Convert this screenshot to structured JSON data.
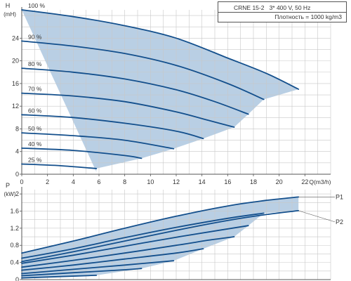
{
  "info": {
    "model": "CRNE 15-2",
    "supply": "3* 400 V, 50 Hz",
    "density": "Плотность = 1000 kg/m3"
  },
  "colors": {
    "curve": "#134f8c",
    "fill": "#b9cfe4",
    "grid": "#c8c8c8",
    "axis": "#555555",
    "text": "#333333"
  },
  "chart_data": [
    {
      "type": "line",
      "title": "CRNE 15-2 3* 400 V, 50 Hz",
      "ylabel_top": "H",
      "ylabel_unit": "(mH)",
      "xlabel": "Q(m3/h)",
      "xlim": [
        0,
        24
      ],
      "ylim": [
        0,
        29
      ],
      "x_ticks": [
        0,
        2,
        4,
        6,
        8,
        10,
        12,
        14,
        16,
        18,
        20,
        22
      ],
      "x_tick_labels": [
        "0",
        "2",
        "4",
        "6",
        "8",
        "10",
        "12",
        "14",
        "16",
        "18",
        "20",
        "22"
      ],
      "y_ticks": [
        0,
        4,
        8,
        12,
        16,
        20,
        24
      ],
      "y_tick_labels": [
        "0",
        "4",
        "8",
        "12",
        "16",
        "20",
        "24"
      ],
      "grid": true,
      "shaded_region": true,
      "series": [
        {
          "name": "100 %",
          "x": [
            0,
            4,
            8,
            12,
            16,
            19,
            21.5
          ],
          "y": [
            29,
            27.8,
            26.2,
            24,
            20.5,
            17.8,
            15.0
          ]
        },
        {
          "name": "90 %",
          "x": [
            0,
            4,
            8,
            12,
            16,
            18.8
          ],
          "y": [
            23.5,
            22.6,
            21.3,
            19.2,
            16.0,
            13.2
          ]
        },
        {
          "name": "80 %",
          "x": [
            0,
            4,
            8,
            12,
            15,
            17.6
          ],
          "y": [
            18.7,
            18.0,
            16.8,
            14.9,
            12.8,
            10.6
          ]
        },
        {
          "name": "70 %",
          "x": [
            0,
            4,
            8,
            12,
            14.5,
            16.5
          ],
          "y": [
            14.3,
            13.8,
            12.8,
            11.0,
            9.5,
            8.3
          ]
        },
        {
          "name": "60 %",
          "x": [
            0,
            4,
            8,
            12,
            14.1
          ],
          "y": [
            10.5,
            10.0,
            9.0,
            7.6,
            6.3
          ]
        },
        {
          "name": "50 %",
          "x": [
            0,
            4,
            8,
            11.8
          ],
          "y": [
            7.3,
            6.8,
            6.0,
            4.5
          ]
        },
        {
          "name": "40 %",
          "x": [
            0,
            4,
            8,
            9.3
          ],
          "y": [
            4.6,
            4.2,
            3.3,
            2.8
          ]
        },
        {
          "name": "25 %",
          "x": [
            0,
            3,
            5.8
          ],
          "y": [
            1.8,
            1.5,
            1.0
          ]
        }
      ]
    },
    {
      "type": "line",
      "ylabel_top": "P",
      "ylabel_unit": "(kW)",
      "xlim": [
        0,
        24
      ],
      "ylim": [
        0,
        2.1
      ],
      "y_ticks": [
        0,
        0.4,
        0.8,
        1.2,
        1.6,
        2
      ],
      "y_tick_labels": [
        "0",
        "0.4",
        "0.8",
        "1.2",
        "1.6",
        "2"
      ],
      "grid": true,
      "shaded_region": true,
      "series": [
        {
          "name": "P1",
          "x": [
            0,
            4,
            8,
            12,
            16,
            19,
            21.5
          ],
          "y": [
            0.62,
            0.9,
            1.2,
            1.48,
            1.72,
            1.85,
            1.93
          ]
        },
        {
          "name": "P2",
          "x": [
            0,
            4,
            8,
            12,
            16,
            19,
            21.5
          ],
          "y": [
            0.42,
            0.65,
            0.9,
            1.15,
            1.38,
            1.52,
            1.61
          ]
        },
        {
          "name": "",
          "x": [
            0,
            4,
            8,
            12,
            16,
            18.8
          ],
          "y": [
            0.5,
            0.72,
            0.98,
            1.22,
            1.43,
            1.55
          ]
        },
        {
          "name": "",
          "x": [
            0,
            4,
            8,
            12,
            15.5,
            17.6
          ],
          "y": [
            0.38,
            0.57,
            0.78,
            0.99,
            1.16,
            1.26
          ]
        },
        {
          "name": "",
          "x": [
            0,
            4,
            8,
            12,
            14.5,
            16.5
          ],
          "y": [
            0.29,
            0.45,
            0.62,
            0.8,
            0.92,
            1.0
          ]
        },
        {
          "name": "",
          "x": [
            0,
            4,
            8,
            12,
            14.1
          ],
          "y": [
            0.22,
            0.34,
            0.48,
            0.62,
            0.72
          ]
        },
        {
          "name": "",
          "x": [
            0,
            4,
            8,
            11.8
          ],
          "y": [
            0.14,
            0.24,
            0.34,
            0.44
          ]
        },
        {
          "name": "",
          "x": [
            0,
            4,
            8,
            9.3
          ],
          "y": [
            0.09,
            0.16,
            0.23,
            0.26
          ]
        },
        {
          "name": "",
          "x": [
            0,
            3,
            5.8
          ],
          "y": [
            0.04,
            0.07,
            0.1
          ]
        }
      ]
    }
  ]
}
